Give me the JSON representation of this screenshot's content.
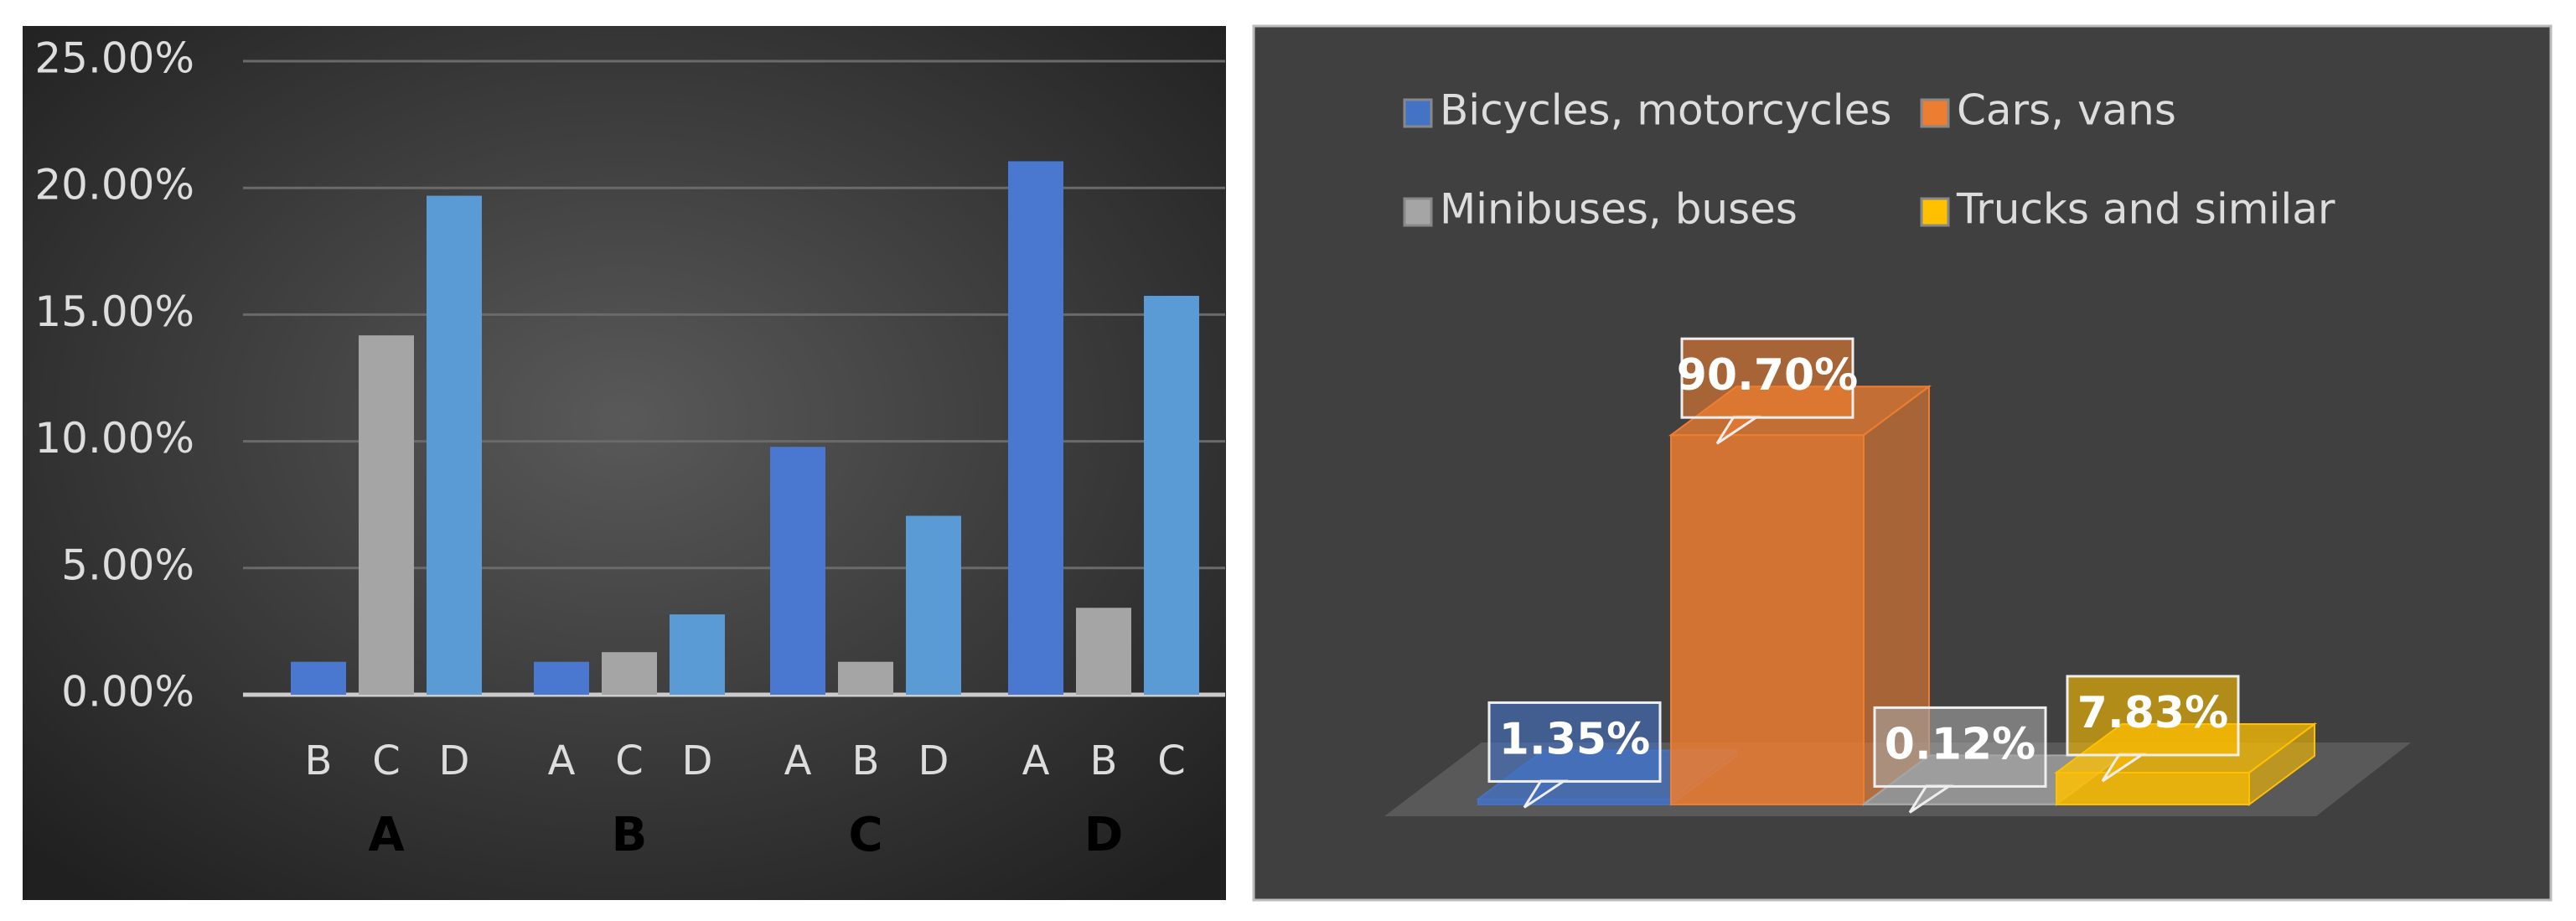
{
  "chart_data": [
    {
      "type": "grouped-bar",
      "ylim": [
        0,
        25
      ],
      "yticks": [
        {
          "value": 0,
          "label": "0.00%"
        },
        {
          "value": 5,
          "label": "5.00%"
        },
        {
          "value": 10,
          "label": "10.00%"
        },
        {
          "value": 15,
          "label": "15.00%"
        },
        {
          "value": 20,
          "label": "20.00%"
        },
        {
          "value": 25,
          "label": "25.00%"
        }
      ],
      "grid": true,
      "colors": [
        "#4a78d0",
        "#a5a5a5",
        "#5b9bd5"
      ],
      "groups": [
        {
          "label": "A",
          "subcategories": [
            "B",
            "C",
            "D"
          ],
          "values": [
            1.3,
            14.18,
            19.69
          ]
        },
        {
          "label": "B",
          "subcategories": [
            "A",
            "C",
            "D"
          ],
          "values": [
            1.3,
            1.68,
            3.17
          ]
        },
        {
          "label": "C",
          "subcategories": [
            "A",
            "B",
            "D"
          ],
          "values": [
            9.78,
            1.3,
            7.06
          ]
        },
        {
          "label": "D",
          "subcategories": [
            "A",
            "B",
            "C"
          ],
          "values": [
            21.05,
            3.43,
            15.74
          ]
        }
      ]
    },
    {
      "type": "bar3d",
      "categories": [
        "Bicycles, motorcycles",
        "Cars, vans",
        "Minibuses, buses",
        "Trucks and similar"
      ],
      "colors": [
        "#4472c4",
        "#ed7d31",
        "#a5a5a5",
        "#ffc000"
      ],
      "values": [
        1.35,
        90.7,
        0.12,
        7.83
      ],
      "value_labels": [
        "1.35%",
        "90.70%",
        "0.12%",
        "7.83%"
      ]
    }
  ]
}
